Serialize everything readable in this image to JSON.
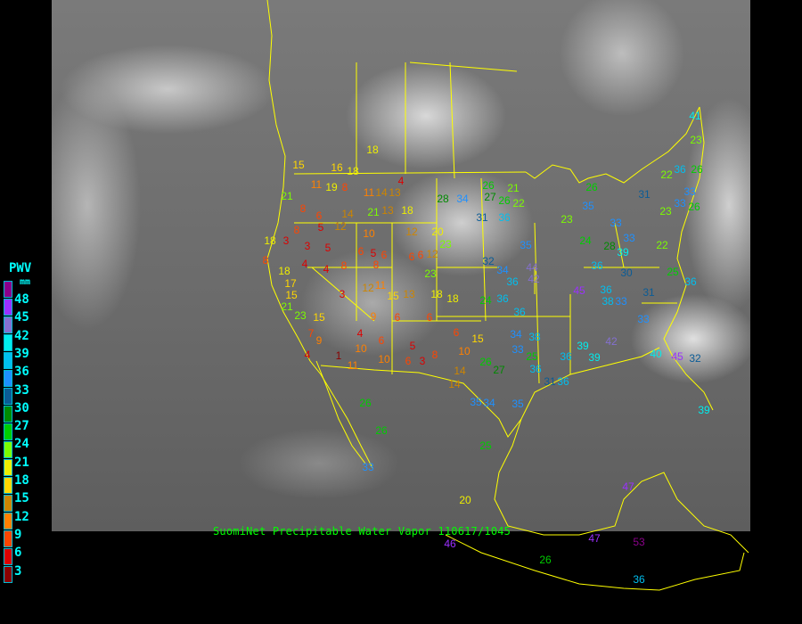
{
  "legend": {
    "title": "PWV",
    "unit": "mm",
    "ticks": [
      "48",
      "45",
      "42",
      "39",
      "36",
      "33",
      "30",
      "27",
      "24",
      "21",
      "18",
      "15",
      "12",
      "9",
      "6",
      "3"
    ],
    "colors": [
      "#8b008b",
      "#9b30ff",
      "#8470d0",
      "#00eeee",
      "#00bfef",
      "#1e90ff",
      "#0b5c96",
      "#008b00",
      "#00cd00",
      "#7cfc00",
      "#eeee00",
      "#ffd700",
      "#cd8500",
      "#ff8000",
      "#ff4500",
      "#dd0000",
      "#8b0000"
    ]
  },
  "caption": "SuomiNet Precipitable Water Vapor 110617/1045",
  "border_color": "#ffff00",
  "stations": [
    "18",
    "15",
    "16",
    "18",
    "11",
    "19",
    "8",
    "21",
    "11",
    "14",
    "13",
    "4",
    "28",
    "34",
    "26",
    "27",
    "26",
    "21",
    "22",
    "31",
    "36",
    "18",
    "13",
    "21",
    "8",
    "6",
    "14",
    "5",
    "12",
    "8",
    "10",
    "12",
    "20",
    "23",
    "18",
    "3",
    "3",
    "5",
    "6",
    "5",
    "6",
    "6",
    "6",
    "12",
    "35",
    "32",
    "34",
    "44",
    "8",
    "18",
    "4",
    "4",
    "8",
    "8",
    "23",
    "36",
    "42",
    "17",
    "15",
    "3",
    "12",
    "11",
    "15",
    "13",
    "18",
    "18",
    "24",
    "36",
    "21",
    "23",
    "15",
    "6",
    "6",
    "36",
    "45",
    "36",
    "7",
    "9",
    "4",
    "9",
    "6",
    "5",
    "6",
    "15",
    "34",
    "38",
    "39",
    "42",
    "10",
    "4",
    "1",
    "10",
    "10",
    "26",
    "27",
    "25",
    "33",
    "36",
    "39",
    "11",
    "6",
    "3",
    "8",
    "14",
    "14",
    "35",
    "34",
    "36",
    "31",
    "36",
    "40",
    "45",
    "32",
    "26",
    "35",
    "26",
    "25",
    "20",
    "33",
    "47",
    "53",
    "47",
    "46",
    "26",
    "36",
    "39",
    "22",
    "31",
    "33",
    "33",
    "26",
    "23",
    "23",
    "26",
    "35",
    "33",
    "22",
    "24",
    "28",
    "33",
    "39",
    "36",
    "30",
    "25",
    "36",
    "31",
    "38",
    "33",
    "33",
    "41",
    "23",
    "26",
    "36"
  ]
}
